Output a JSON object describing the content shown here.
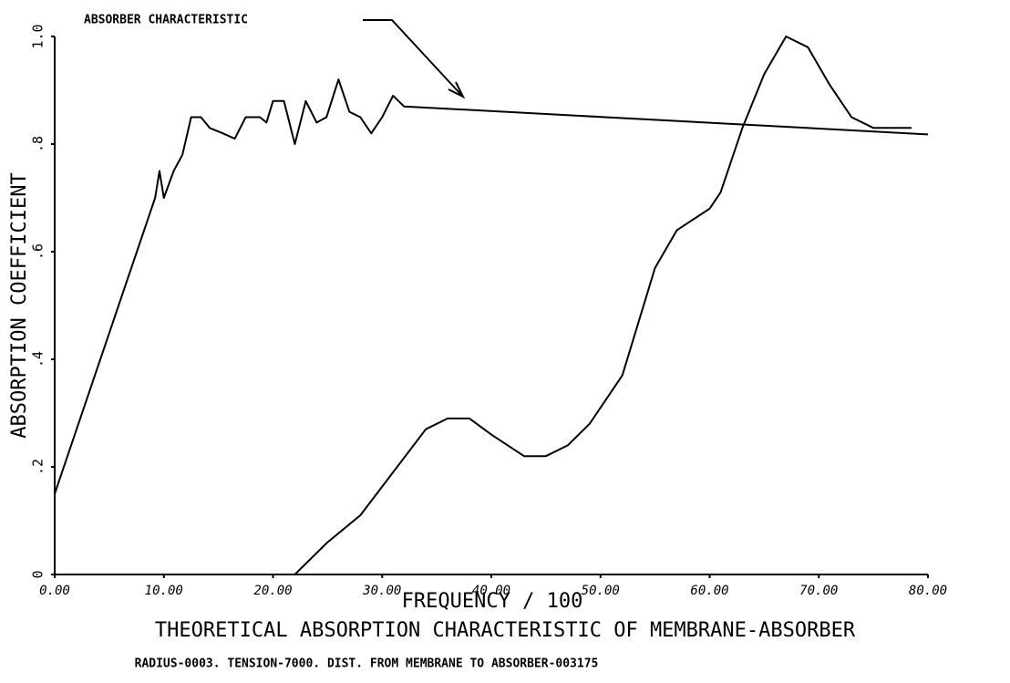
{
  "chart_data": {
    "type": "line",
    "title": "THEORETICAL ABSORPTION CHARACTERISTIC OF MEMBRANE-ABSORBER",
    "subtitle": "RADIUS-0003. TENSION-7000. DIST. FROM MEMBRANE TO ABSORBER-003175",
    "x_label": "FREQUENCY / 100",
    "y_label": "ABSORPTION COEFFICIENT",
    "annotation": "ABSORBER CHARACTERISTIC",
    "xlim": [
      0,
      80
    ],
    "xticks": [
      {
        "value": 0,
        "label": "0.00"
      },
      {
        "value": 10,
        "label": "10.00"
      },
      {
        "value": 20,
        "label": "20.00"
      },
      {
        "value": 30,
        "label": "30.00"
      },
      {
        "value": 40,
        "label": "40.00"
      },
      {
        "value": 50,
        "label": "50.00"
      },
      {
        "value": 60,
        "label": "60.00"
      },
      {
        "value": 70,
        "label": "70.00"
      },
      {
        "value": 80,
        "label": "80.00"
      }
    ],
    "ylim": [
      0,
      1.0
    ],
    "yticks": [
      0,
      {
        "value": 0.2,
        "label": ".2"
      },
      {
        "value": 0.4,
        "label": ".4"
      },
      {
        "value": 0.6,
        "label": ".6"
      },
      {
        "value": 0.8,
        "label": ".8"
      },
      {
        "value": 1.0,
        "label": "1.0"
      }
    ],
    "grid": false,
    "series": [
      {
        "color": "#000000",
        "x": [
          0,
          9.2,
          9.6,
          10.0,
          10.9,
          11.7,
          12.5,
          13.4,
          14.2,
          15.4,
          16.5,
          17.5,
          18.8,
          19.4,
          20.0,
          21.0,
          22.0,
          23.0,
          24.0,
          24.9,
          26.0,
          27.0,
          28.0,
          29.0,
          30.0,
          31.0,
          32.0,
          80
        ],
        "values": [
          0.15,
          0.7,
          0.75,
          0.7,
          0.75,
          0.78,
          0.85,
          0.85,
          0.83,
          0.82,
          0.81,
          0.85,
          0.85,
          0.84,
          0.88,
          0.88,
          0.8,
          0.88,
          0.84,
          0.85,
          0.92,
          0.86,
          0.85,
          0.82,
          0.85,
          0.89,
          0.87,
          0.818
        ]
      },
      {
        "color": "#000000",
        "x": [
          0,
          22,
          25,
          28,
          31,
          34,
          36,
          38,
          40,
          43,
          45,
          47,
          49,
          52,
          55,
          57,
          60,
          61,
          63,
          65,
          67,
          69,
          71,
          73,
          75,
          78.5
        ],
        "values": [
          0,
          0,
          0.06,
          0.11,
          0.19,
          0.27,
          0.29,
          0.29,
          0.26,
          0.22,
          0.22,
          0.24,
          0.28,
          0.37,
          0.57,
          0.64,
          0.68,
          0.71,
          0.83,
          0.93,
          1.0,
          0.98,
          0.91,
          0.85,
          0.83,
          0.83
        ]
      }
    ]
  }
}
